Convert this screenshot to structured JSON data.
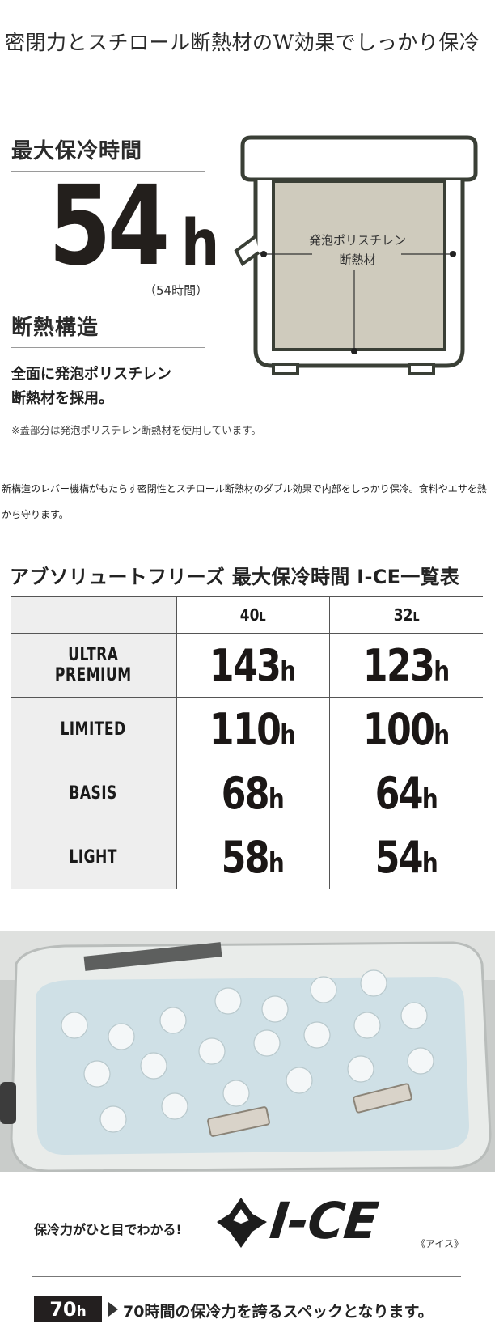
{
  "headline": "密閉力とスチロール断熱材のW効果でしっかり保冷",
  "max_cold": {
    "heading": "最大保冷時間",
    "value": "54",
    "unit": "h",
    "sub": "（54時間）"
  },
  "insulation": {
    "heading": "断熱構造",
    "desc_line1": "全面に発泡ポリスチレン",
    "desc_line2": "断熱材を採用。",
    "note": "※蓋部分は発泡ポリスチレン断熱材を使用しています。"
  },
  "diagram": {
    "label_line1": "発泡ポリスチレン",
    "label_line2": "断熱材",
    "fill_color": "#cfcbbd",
    "stroke_color": "#3a3f36"
  },
  "paragraph": "新構造のレバー機構がもたらす密閉性とスチロール断熱材のダブル効果で内部をしっかり保冷。食料やエサを熱から守ります。",
  "table": {
    "title": "アブソリュートフリーズ 最大保冷時間 I-CE一覧表",
    "columns": [
      {
        "num": "40",
        "unit": "L"
      },
      {
        "num": "32",
        "unit": "L"
      }
    ],
    "rows": [
      {
        "label": "ULTRA PREMIUM",
        "v1": "143",
        "v2": "123"
      },
      {
        "label": "LIMITED",
        "v1": "110",
        "v2": "100"
      },
      {
        "label": "BASIS",
        "v1": "68",
        "v2": "64"
      },
      {
        "label": "LIGHT",
        "v1": "58",
        "v2": "54"
      }
    ],
    "hour_unit": "h"
  },
  "ice": {
    "tagline": "保冷力がひと目でわかる!",
    "word": "I-CE",
    "kana": "《アイス》",
    "badge_num": "70",
    "badge_unit": "h",
    "badge_text": "70時間の保冷力を誇るスペックとなります。"
  },
  "colors": {
    "dark": "#231f1f",
    "table_label_bg": "#eeeeee",
    "border": "#555555"
  }
}
